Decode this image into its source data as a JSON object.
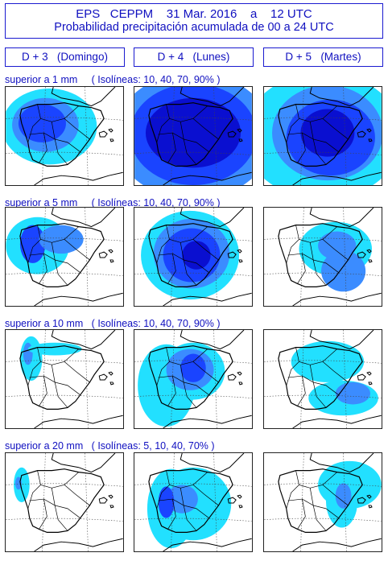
{
  "header": {
    "line1": "EPS   CEPPM    31 Mar. 2016    a    12 UTC",
    "line2": "Probabilidad precipitación acumulada de 00 a 24 UTC"
  },
  "days": [
    {
      "label": "D + 3   (Domingo)"
    },
    {
      "label": "D + 4   (Lunes)"
    },
    {
      "label": "D + 5   (Martes)"
    }
  ],
  "rows": [
    {
      "label": "superior a 1 mm     ( Isolíneas: 10, 40, 70, 90% )"
    },
    {
      "label": "superior a 5 mm     ( Isolíneas: 10, 40, 70, 90% )"
    },
    {
      "label": "superior a 10 mm   ( Isolíneas: 10, 40, 70, 90% )"
    },
    {
      "label": "superior a 20 mm   ( Isolíneas: 5, 10, 40, 70% )"
    }
  ],
  "colors": {
    "text": "#1010c0",
    "p10": "#22e0ff",
    "p40": "#3b8cff",
    "p70": "#1a44ff",
    "p90": "#0a0fd0",
    "land_outline": "#000000"
  }
}
